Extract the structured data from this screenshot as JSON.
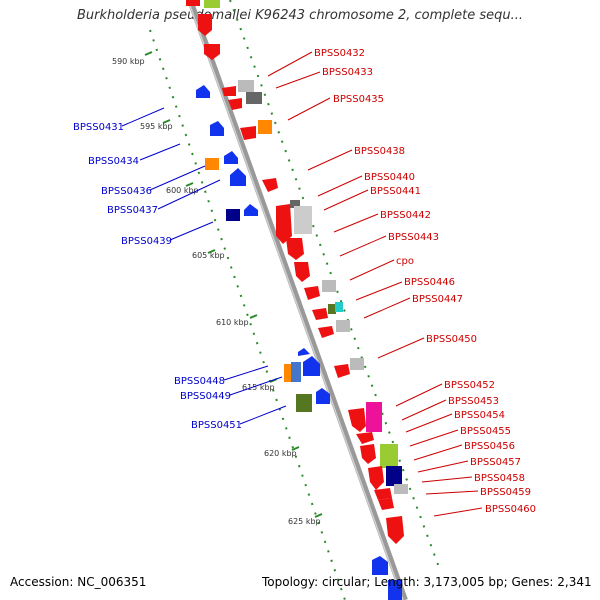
{
  "title": "Burkholderia pseudomallei K96243 chromosome 2, complete sequ...",
  "footer": {
    "accession": "Accession: NC_006351",
    "summary": "Topology: circular; Length: 3,173,005 bp; Genes: 2,341"
  },
  "colors": {
    "backbone": "#888888",
    "tick": "#2a8a2a",
    "left_label": "#0000cc",
    "right_label": "#cc0000"
  },
  "scale_labels": [
    "590 kbp",
    "595 kbp",
    "600 kbp",
    "605 kbp",
    "610 kbp",
    "615 kbp",
    "620 kbp",
    "625 kbp"
  ],
  "left_genes": [
    "BPSS0431",
    "BPSS0434",
    "BPSS0436",
    "BPSS0437",
    "BPSS0439",
    "BPSS0448",
    "BPSS0449",
    "BPSS0451"
  ],
  "right_genes": [
    "BPSS0432",
    "BPSS0433",
    "BPSS0435",
    "BPSS0438",
    "BPSS0440",
    "BPSS0441",
    "BPSS0442",
    "BPSS0443",
    "cpo",
    "BPSS0446",
    "BPSS0447",
    "BPSS0450",
    "BPSS0452",
    "BPSS0453",
    "BPSS0454",
    "BPSS0455",
    "BPSS0456",
    "BPSS0457",
    "BPSS0458",
    "BPSS0459",
    "BPSS0460"
  ],
  "feature_colors": [
    "#ee1111",
    "#bbbbbb",
    "#666666",
    "#ff8800",
    "#1133ee",
    "#000088",
    "#ee1199",
    "#99cc33",
    "#557722",
    "#22cccc",
    "#4477cc"
  ]
}
